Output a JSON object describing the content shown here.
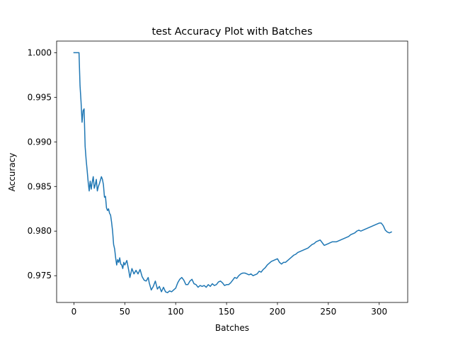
{
  "chart_data": {
    "type": "line",
    "title": "test Accuracy Plot with Batches",
    "xlabel": "Batches",
    "ylabel": "Accuracy",
    "xlim": [
      -17,
      328
    ],
    "ylim": [
      0.972,
      1.0013
    ],
    "xticks": [
      0,
      50,
      100,
      150,
      200,
      250,
      300
    ],
    "yticks": [
      0.975,
      0.98,
      0.985,
      0.99,
      0.995,
      1.0
    ],
    "xtick_labels": [
      "0",
      "50",
      "100",
      "150",
      "200",
      "250",
      "300"
    ],
    "ytick_labels": [
      "0.975",
      "0.980",
      "0.985",
      "0.990",
      "0.995",
      "1.000"
    ],
    "grid": false,
    "legend": "none",
    "series": [
      {
        "color": "#1f77b4",
        "points": [
          [
            0,
            1.0
          ],
          [
            5,
            1.0
          ],
          [
            6,
            0.9963
          ],
          [
            7,
            0.9945
          ],
          [
            8,
            0.9922
          ],
          [
            9,
            0.9935
          ],
          [
            10,
            0.9937
          ],
          [
            11,
            0.9895
          ],
          [
            12,
            0.988
          ],
          [
            13,
            0.9868
          ],
          [
            14,
            0.9855
          ],
          [
            15,
            0.9845
          ],
          [
            16,
            0.9856
          ],
          [
            17,
            0.9847
          ],
          [
            18,
            0.9855
          ],
          [
            19,
            0.9861
          ],
          [
            20,
            0.9848
          ],
          [
            21,
            0.9852
          ],
          [
            22,
            0.9858
          ],
          [
            23,
            0.9845
          ],
          [
            24,
            0.985
          ],
          [
            25,
            0.9853
          ],
          [
            26,
            0.9857
          ],
          [
            27,
            0.9861
          ],
          [
            28,
            0.9858
          ],
          [
            29,
            0.9852
          ],
          [
            30,
            0.9838
          ],
          [
            31,
            0.9839
          ],
          [
            32,
            0.9826
          ],
          [
            33,
            0.9823
          ],
          [
            34,
            0.9825
          ],
          [
            35,
            0.982
          ],
          [
            36,
            0.9818
          ],
          [
            37,
            0.981
          ],
          [
            38,
            0.98
          ],
          [
            39,
            0.9785
          ],
          [
            40,
            0.978
          ],
          [
            41,
            0.977
          ],
          [
            42,
            0.9762
          ],
          [
            43,
            0.9768
          ],
          [
            44,
            0.9765
          ],
          [
            45,
            0.977
          ],
          [
            46,
            0.9763
          ],
          [
            47,
            0.9762
          ],
          [
            48,
            0.9758
          ],
          [
            49,
            0.9765
          ],
          [
            50,
            0.9762
          ],
          [
            52,
            0.9767
          ],
          [
            54,
            0.9755
          ],
          [
            55,
            0.9748
          ],
          [
            57,
            0.9758
          ],
          [
            59,
            0.9752
          ],
          [
            61,
            0.9756
          ],
          [
            63,
            0.9752
          ],
          [
            65,
            0.9757
          ],
          [
            67,
            0.9749
          ],
          [
            69,
            0.9745
          ],
          [
            71,
            0.9744
          ],
          [
            73,
            0.9748
          ],
          [
            74,
            0.9742
          ],
          [
            76,
            0.9734
          ],
          [
            78,
            0.9738
          ],
          [
            80,
            0.9744
          ],
          [
            82,
            0.9735
          ],
          [
            84,
            0.9738
          ],
          [
            86,
            0.9732
          ],
          [
            88,
            0.9737
          ],
          [
            90,
            0.9732
          ],
          [
            92,
            0.9731
          ],
          [
            94,
            0.9733
          ],
          [
            96,
            0.9732
          ],
          [
            98,
            0.9734
          ],
          [
            100,
            0.9736
          ],
          [
            102,
            0.9742
          ],
          [
            104,
            0.9746
          ],
          [
            106,
            0.9748
          ],
          [
            108,
            0.9745
          ],
          [
            110,
            0.974
          ],
          [
            112,
            0.974
          ],
          [
            114,
            0.9744
          ],
          [
            116,
            0.9746
          ],
          [
            118,
            0.9741
          ],
          [
            120,
            0.974
          ],
          [
            122,
            0.9737
          ],
          [
            124,
            0.9739
          ],
          [
            126,
            0.9738
          ],
          [
            128,
            0.9739
          ],
          [
            130,
            0.9737
          ],
          [
            132,
            0.974
          ],
          [
            134,
            0.9738
          ],
          [
            136,
            0.9741
          ],
          [
            138,
            0.9739
          ],
          [
            140,
            0.974
          ],
          [
            142,
            0.9743
          ],
          [
            144,
            0.9744
          ],
          [
            146,
            0.9742
          ],
          [
            148,
            0.9739
          ],
          [
            150,
            0.974
          ],
          [
            152,
            0.974
          ],
          [
            154,
            0.9742
          ],
          [
            156,
            0.9745
          ],
          [
            158,
            0.9748
          ],
          [
            160,
            0.9747
          ],
          [
            162,
            0.975
          ],
          [
            164,
            0.9752
          ],
          [
            166,
            0.9753
          ],
          [
            168,
            0.9753
          ],
          [
            170,
            0.9752
          ],
          [
            172,
            0.9751
          ],
          [
            174,
            0.9752
          ],
          [
            176,
            0.975
          ],
          [
            178,
            0.9751
          ],
          [
            180,
            0.9752
          ],
          [
            182,
            0.9755
          ],
          [
            184,
            0.9754
          ],
          [
            186,
            0.9757
          ],
          [
            188,
            0.9759
          ],
          [
            190,
            0.9762
          ],
          [
            192,
            0.9764
          ],
          [
            194,
            0.9766
          ],
          [
            196,
            0.9767
          ],
          [
            198,
            0.9768
          ],
          [
            200,
            0.9769
          ],
          [
            202,
            0.9765
          ],
          [
            204,
            0.9763
          ],
          [
            206,
            0.9765
          ],
          [
            208,
            0.9765
          ],
          [
            210,
            0.9767
          ],
          [
            212,
            0.9769
          ],
          [
            214,
            0.9771
          ],
          [
            216,
            0.9773
          ],
          [
            218,
            0.9774
          ],
          [
            220,
            0.9776
          ],
          [
            222,
            0.9777
          ],
          [
            224,
            0.9778
          ],
          [
            226,
            0.9779
          ],
          [
            228,
            0.978
          ],
          [
            230,
            0.9781
          ],
          [
            232,
            0.9783
          ],
          [
            234,
            0.9785
          ],
          [
            236,
            0.9786
          ],
          [
            238,
            0.9788
          ],
          [
            240,
            0.9789
          ],
          [
            242,
            0.979
          ],
          [
            244,
            0.9787
          ],
          [
            246,
            0.9784
          ],
          [
            248,
            0.9785
          ],
          [
            250,
            0.9786
          ],
          [
            252,
            0.9787
          ],
          [
            254,
            0.9788
          ],
          [
            256,
            0.9788
          ],
          [
            258,
            0.9788
          ],
          [
            260,
            0.9789
          ],
          [
            262,
            0.979
          ],
          [
            264,
            0.9791
          ],
          [
            266,
            0.9792
          ],
          [
            268,
            0.9793
          ],
          [
            270,
            0.9794
          ],
          [
            272,
            0.9796
          ],
          [
            274,
            0.9797
          ],
          [
            276,
            0.9798
          ],
          [
            278,
            0.98
          ],
          [
            280,
            0.9801
          ],
          [
            282,
            0.98
          ],
          [
            284,
            0.9801
          ],
          [
            286,
            0.9802
          ],
          [
            288,
            0.9803
          ],
          [
            290,
            0.9804
          ],
          [
            292,
            0.9805
          ],
          [
            294,
            0.9806
          ],
          [
            296,
            0.9807
          ],
          [
            298,
            0.9808
          ],
          [
            300,
            0.9809
          ],
          [
            302,
            0.9809
          ],
          [
            304,
            0.9806
          ],
          [
            306,
            0.9801
          ],
          [
            308,
            0.9799
          ],
          [
            310,
            0.9798
          ],
          [
            312,
            0.9799
          ]
        ]
      }
    ]
  }
}
